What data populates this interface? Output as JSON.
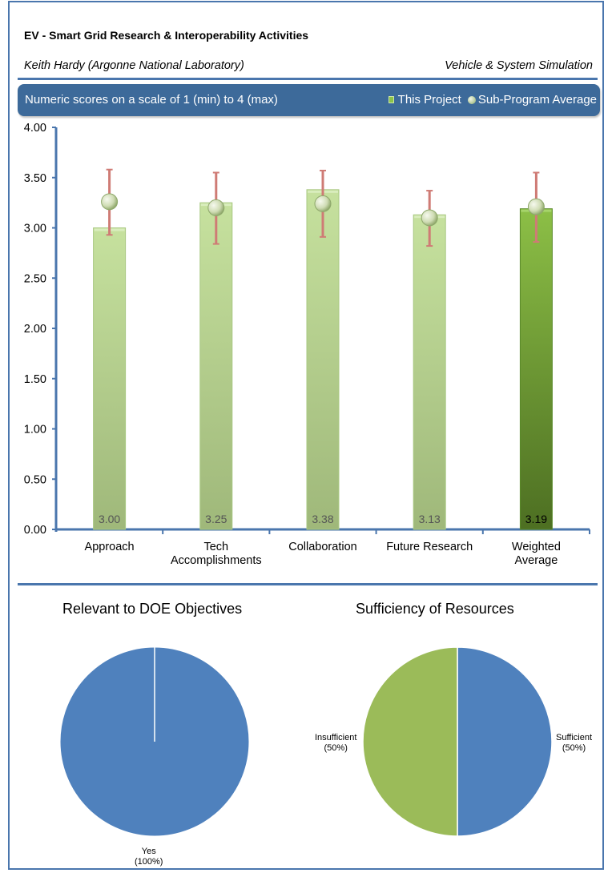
{
  "header": {
    "title": "EV - Smart Grid Research  & Interoperability Activities",
    "presenter": "Keith Hardy (Argonne National Laboratory)",
    "program": "Vehicle & System Simulation"
  },
  "banner": {
    "scale_text": "Numeric scores on a scale of 1 (min) to 4 (max)",
    "legend_this_project": "This Project",
    "legend_sub_program": "Sub-Program Average"
  },
  "colors": {
    "frame": "#4a76ad",
    "banner": "#3d6a9a",
    "bar_light_green": "#b5d48a",
    "bar_dark_green": "#6e9a35",
    "error_bar": "#cf7b75",
    "pie_blue": "#4f81bd",
    "pie_green": "#9bbb59"
  },
  "chart_data": [
    {
      "type": "bar",
      "title": "",
      "xlabel": "",
      "ylabel": "",
      "ylim": [
        0,
        4
      ],
      "y_ticks": [
        "0.00",
        "0.50",
        "1.00",
        "1.50",
        "2.00",
        "2.50",
        "3.00",
        "3.50",
        "4.00"
      ],
      "categories": [
        [
          "Approach"
        ],
        [
          "Tech",
          "Accomplishments"
        ],
        [
          "Collaboration"
        ],
        [
          "Future Research"
        ],
        [
          "Weighted",
          "Average"
        ]
      ],
      "series": [
        {
          "name": "This Project",
          "values": [
            3.0,
            3.25,
            3.38,
            3.13,
            3.19
          ],
          "labels": [
            "3.00",
            "3.25",
            "3.38",
            "3.13",
            "3.19"
          ]
        },
        {
          "name": "Sub-Program Average",
          "values": [
            3.26,
            3.2,
            3.24,
            3.1,
            3.21
          ],
          "error_high": [
            3.58,
            3.55,
            3.57,
            3.37,
            3.55
          ],
          "error_low": [
            2.93,
            2.84,
            2.91,
            2.82,
            2.86
          ]
        }
      ],
      "grid": false,
      "legend": "top-right"
    },
    {
      "type": "pie",
      "title": "Relevant to DOE Objectives",
      "slices": [
        {
          "label": "Yes",
          "pct_label": "(100%)",
          "value": 100
        }
      ]
    },
    {
      "type": "pie",
      "title": "Sufficiency of Resources",
      "slices": [
        {
          "label": "Sufficient",
          "pct_label": "(50%)",
          "value": 50
        },
        {
          "label": "Insufficient",
          "pct_label": "(50%)",
          "value": 50
        }
      ]
    }
  ]
}
